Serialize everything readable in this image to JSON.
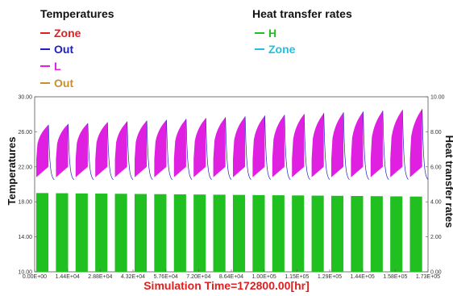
{
  "legend": {
    "left_title": "Temperatures",
    "left_items": [
      {
        "label": "Zone",
        "color": "#e02020"
      },
      {
        "label": "Out",
        "color": "#2020c0"
      },
      {
        "label": "L",
        "color": "#e020e0"
      },
      {
        "label": "Out",
        "color": "#c8902a"
      }
    ],
    "right_title": "Heat transfer rates",
    "right_items": [
      {
        "label": "H",
        "color": "#20c020"
      },
      {
        "label": "Zone",
        "color": "#20c0e0"
      }
    ]
  },
  "chart_data": {
    "type": "area",
    "xlabel": "Simulation Time=172800.00[hr]",
    "ylabel_left": "Temperatures",
    "ylabel_right": "Heat transfer rates",
    "xlim": [
      0,
      172800
    ],
    "ylim_left": [
      10,
      30
    ],
    "ylim_right": [
      0,
      10
    ],
    "x_ticks": [
      "0.00E+00",
      "1.44E+04",
      "2.88E+04",
      "4.32E+04",
      "5.76E+04",
      "7.20E+04",
      "8.64E+04",
      "1.00E+05",
      "1.15E+05",
      "1.29E+05",
      "1.44E+05",
      "1.58E+05",
      "1.73E+05"
    ],
    "y_ticks_left": [
      "10.00",
      "14.00",
      "18.00",
      "22.00",
      "26.00",
      "30.00"
    ],
    "y_ticks_right": [
      "0.00",
      "2.00",
      "4.00",
      "6.00",
      "8.00",
      "10.00"
    ],
    "grid": false,
    "cycles": 20,
    "series": [
      {
        "name": "L",
        "color": "#e020e0",
        "axis": "left",
        "pattern": "daily band rising from ~21 to ~27-28.5; upper envelope increases across the run",
        "peak_first": 26.8,
        "peak_last": 28.6,
        "trough": 20.6
      },
      {
        "name": "H",
        "color": "#20c020",
        "axis": "right",
        "pattern": "square pulses",
        "value_first": 4.5,
        "value_last": 4.3
      },
      {
        "name": "Out",
        "color": "#2020c0",
        "axis": "left",
        "pattern": "decay after each peak",
        "min": 20.4
      }
    ]
  }
}
